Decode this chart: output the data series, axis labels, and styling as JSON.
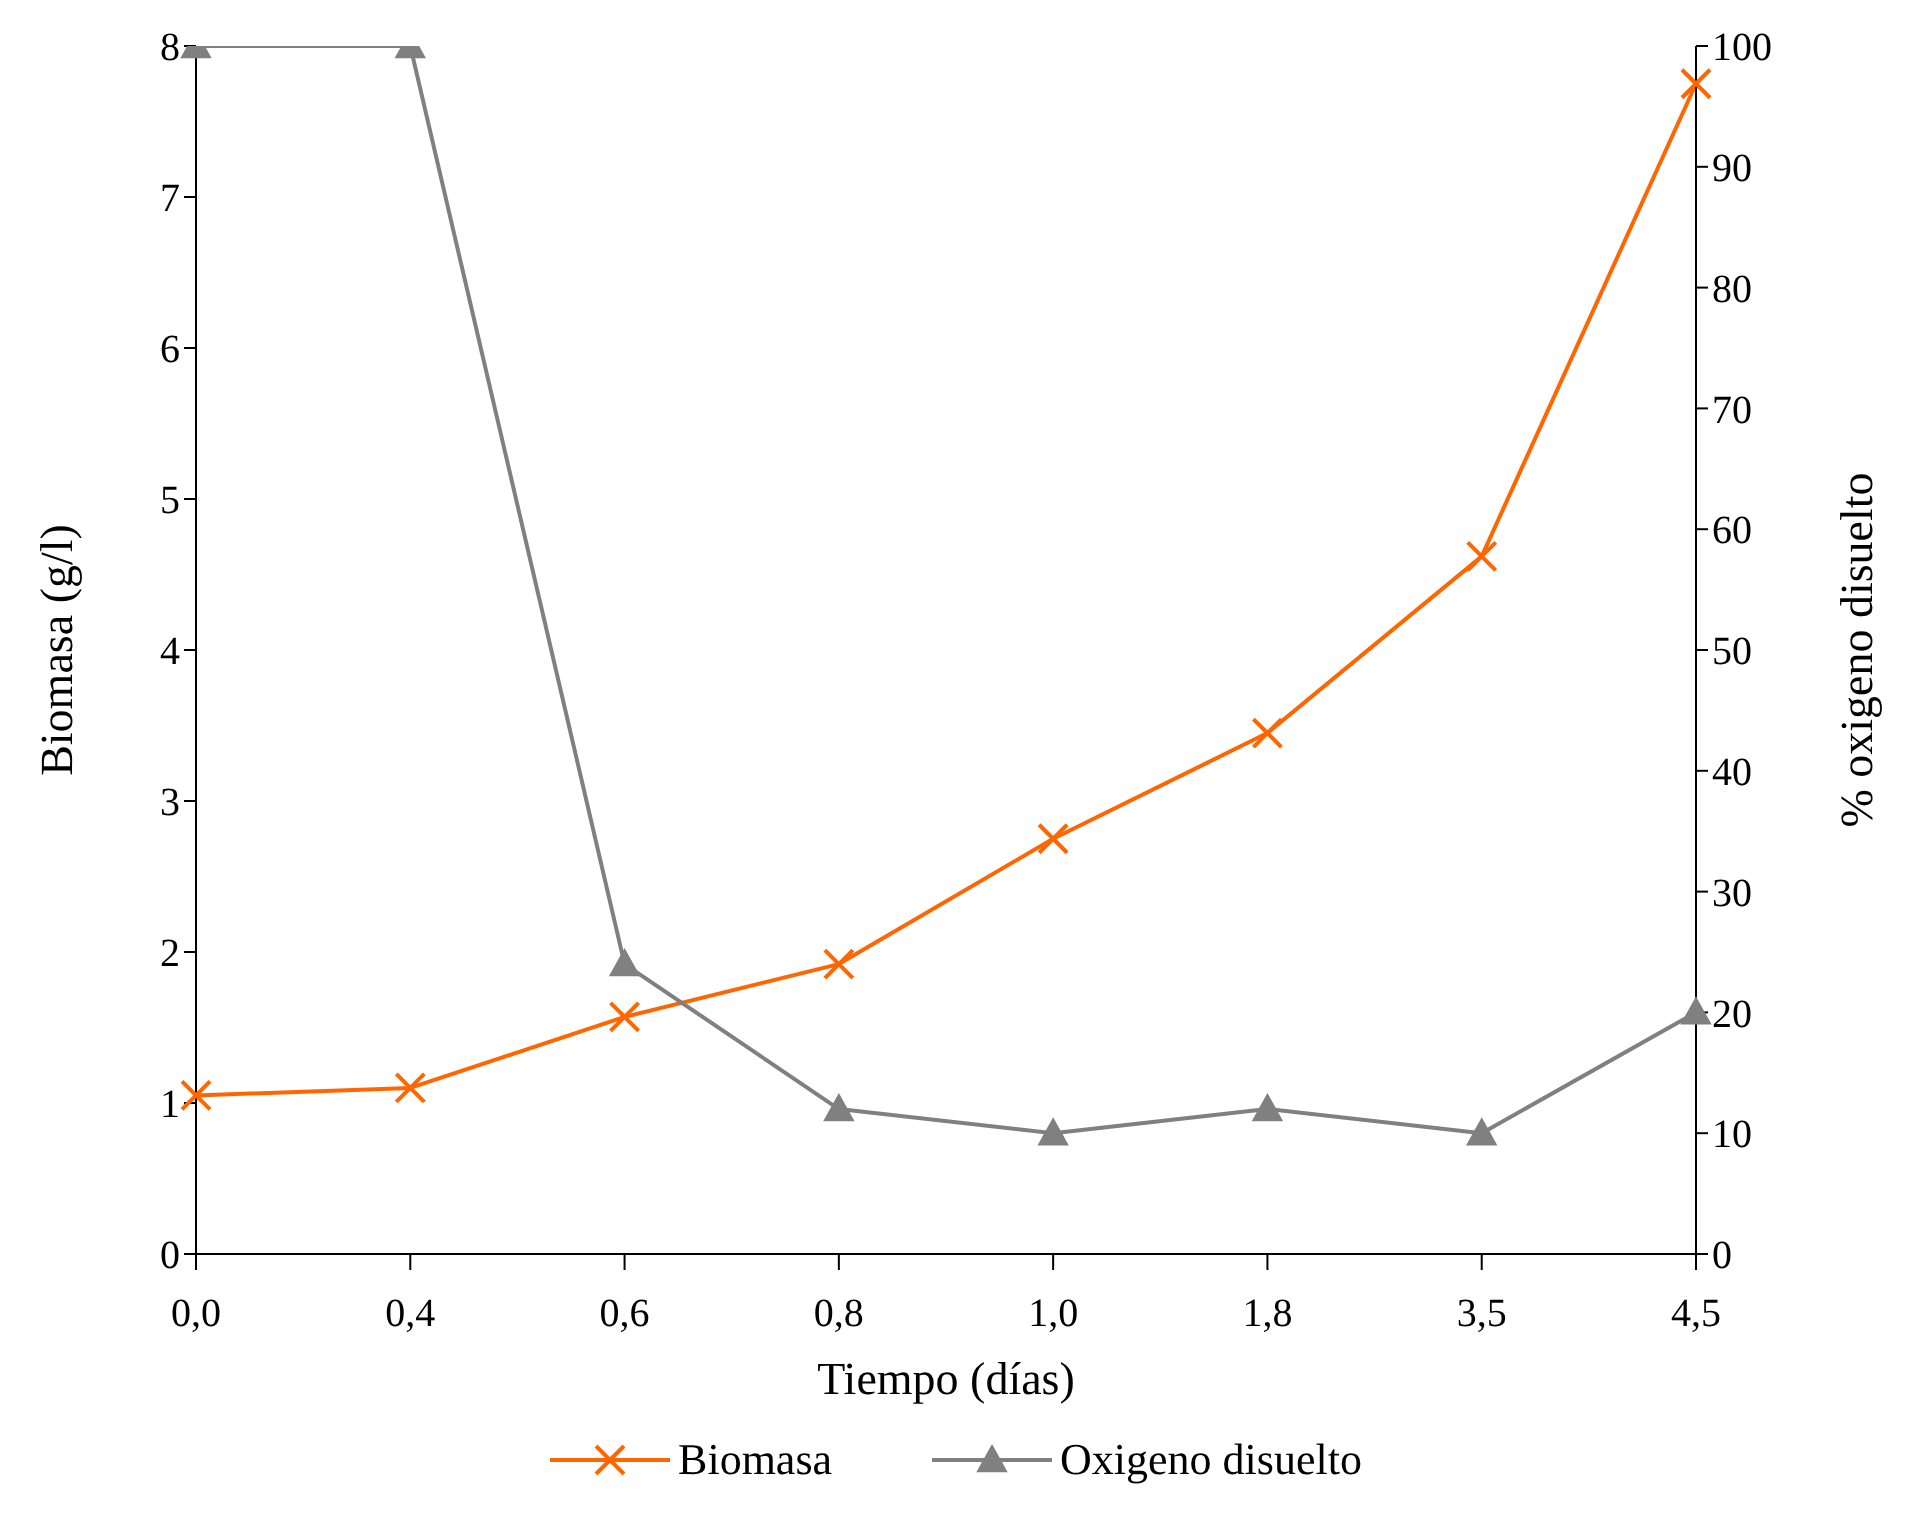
{
  "chart_data": {
    "type": "line",
    "xlabel": "Tiempo (días)",
    "ylabel": "Biomasa (g/l)",
    "y2label": "% oxigeno disuelto",
    "categories": [
      "0,0",
      "0,4",
      "0,6",
      "0,8",
      "1,0",
      "1,8",
      "3,5",
      "4,5"
    ],
    "series": [
      {
        "name": "Biomasa",
        "color": "#ff6600",
        "marker": "cross",
        "values": [
          1.05,
          1.1,
          1.57,
          1.92,
          2.75,
          3.45,
          4.62,
          7.75
        ]
      },
      {
        "name": "Oxigeno disuelto",
        "color": "#808080",
        "marker": "triangle",
        "axis": "y2",
        "values": [
          100,
          100,
          24,
          12,
          10,
          12,
          10,
          20
        ]
      }
    ],
    "ylim": [
      0,
      8
    ],
    "yticks": [
      0,
      1,
      2,
      3,
      4,
      5,
      6,
      7,
      8
    ],
    "y2lim": [
      0,
      100
    ],
    "y2ticks": [
      0,
      10,
      20,
      30,
      40,
      50,
      60,
      70,
      80,
      90,
      100
    ],
    "grid": false,
    "legend": "bottom"
  }
}
